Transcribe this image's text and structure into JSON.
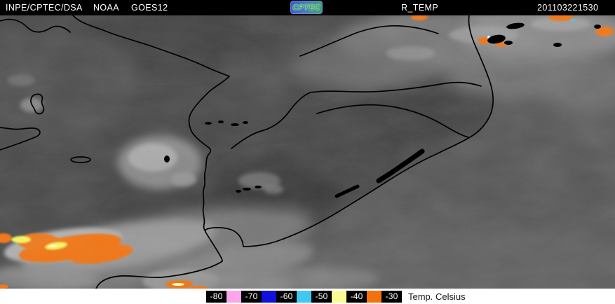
{
  "header": {
    "agency": "INPE/CPTEC/DSA",
    "network": "NOAA",
    "satellite": "GOES12",
    "logo_text": "CPTEC",
    "product": "R_TEMP",
    "timestamp": "201103221530"
  },
  "legend": {
    "title": "Temp. Celsius",
    "entries": [
      {
        "label": "-80",
        "swatch_after": "#F9A6EB"
      },
      {
        "label": "-70",
        "swatch_after": "#1111DC"
      },
      {
        "label": "-60",
        "swatch_after": "#41C8F0"
      },
      {
        "label": "-50",
        "swatch_after": "#FBFB93"
      },
      {
        "label": "-40",
        "swatch_after": "#F4720E"
      },
      {
        "label": "-30",
        "swatch_after": null
      }
    ]
  },
  "image": {
    "description": "GOES-12 infrared (R_TEMP) satellite scene over southern Brazil, Uruguay and Argentina with temperature-enhanced cold cloud tops",
    "enhancement_colors": {
      "cold_cloud_orange": "#F4720E",
      "cold_cloud_yellow": "#FBFB55",
      "border_lines": "#000000"
    }
  }
}
